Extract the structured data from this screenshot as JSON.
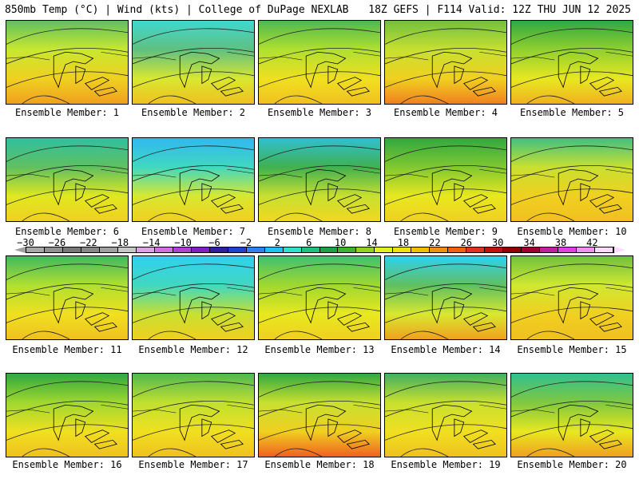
{
  "header": {
    "left": "850mb Temp (°C) | Wind (kts) | College of DuPage NEXLAB",
    "right": "18Z GEFS | F114 Valid: 12Z THU JUN 12 2025"
  },
  "panels": [
    {
      "caption": "Ensemble Member: 1"
    },
    {
      "caption": "Ensemble Member: 2"
    },
    {
      "caption": "Ensemble Member: 3"
    },
    {
      "caption": "Ensemble Member: 4"
    },
    {
      "caption": "Ensemble Member: 5"
    },
    {
      "caption": "Ensemble Member: 6"
    },
    {
      "caption": "Ensemble Member: 7"
    },
    {
      "caption": "Ensemble Member: 8"
    },
    {
      "caption": "Ensemble Member: 9"
    },
    {
      "caption": "Ensemble Member: 10"
    },
    {
      "caption": "Ensemble Member: 11"
    },
    {
      "caption": "Ensemble Member: 12"
    },
    {
      "caption": "Ensemble Member: 13"
    },
    {
      "caption": "Ensemble Member: 14"
    },
    {
      "caption": "Ensemble Member: 15"
    },
    {
      "caption": "Ensemble Member: 16"
    },
    {
      "caption": "Ensemble Member: 17"
    },
    {
      "caption": "Ensemble Member: 18"
    },
    {
      "caption": "Ensemble Member: 19"
    },
    {
      "caption": "Ensemble Member: 20"
    }
  ],
  "colorbar": {
    "labels": [
      "−30",
      "−26",
      "−22",
      "−18",
      "−14",
      "−10",
      "−6",
      "−2",
      "2",
      "6",
      "10",
      "14",
      "18",
      "22",
      "26",
      "30",
      "34",
      "38",
      "42"
    ],
    "colors": [
      "#a8a8a8",
      "#909090",
      "#787878",
      "#888888",
      "#a0a0a0",
      "#c8c8c8",
      "#e0a0e8",
      "#d070e0",
      "#b040d0",
      "#8020c0",
      "#3020a0",
      "#2040d0",
      "#3080f0",
      "#20c0f0",
      "#30e0c8",
      "#20c080",
      "#20a040",
      "#40b030",
      "#90d020",
      "#e0f020",
      "#f0e010",
      "#f0c000",
      "#f09010",
      "#f06010",
      "#e03020",
      "#c01010",
      "#900000",
      "#a00030",
      "#c020a0",
      "#e040e0",
      "#f090f0",
      "#ffd8ff"
    ]
  }
}
